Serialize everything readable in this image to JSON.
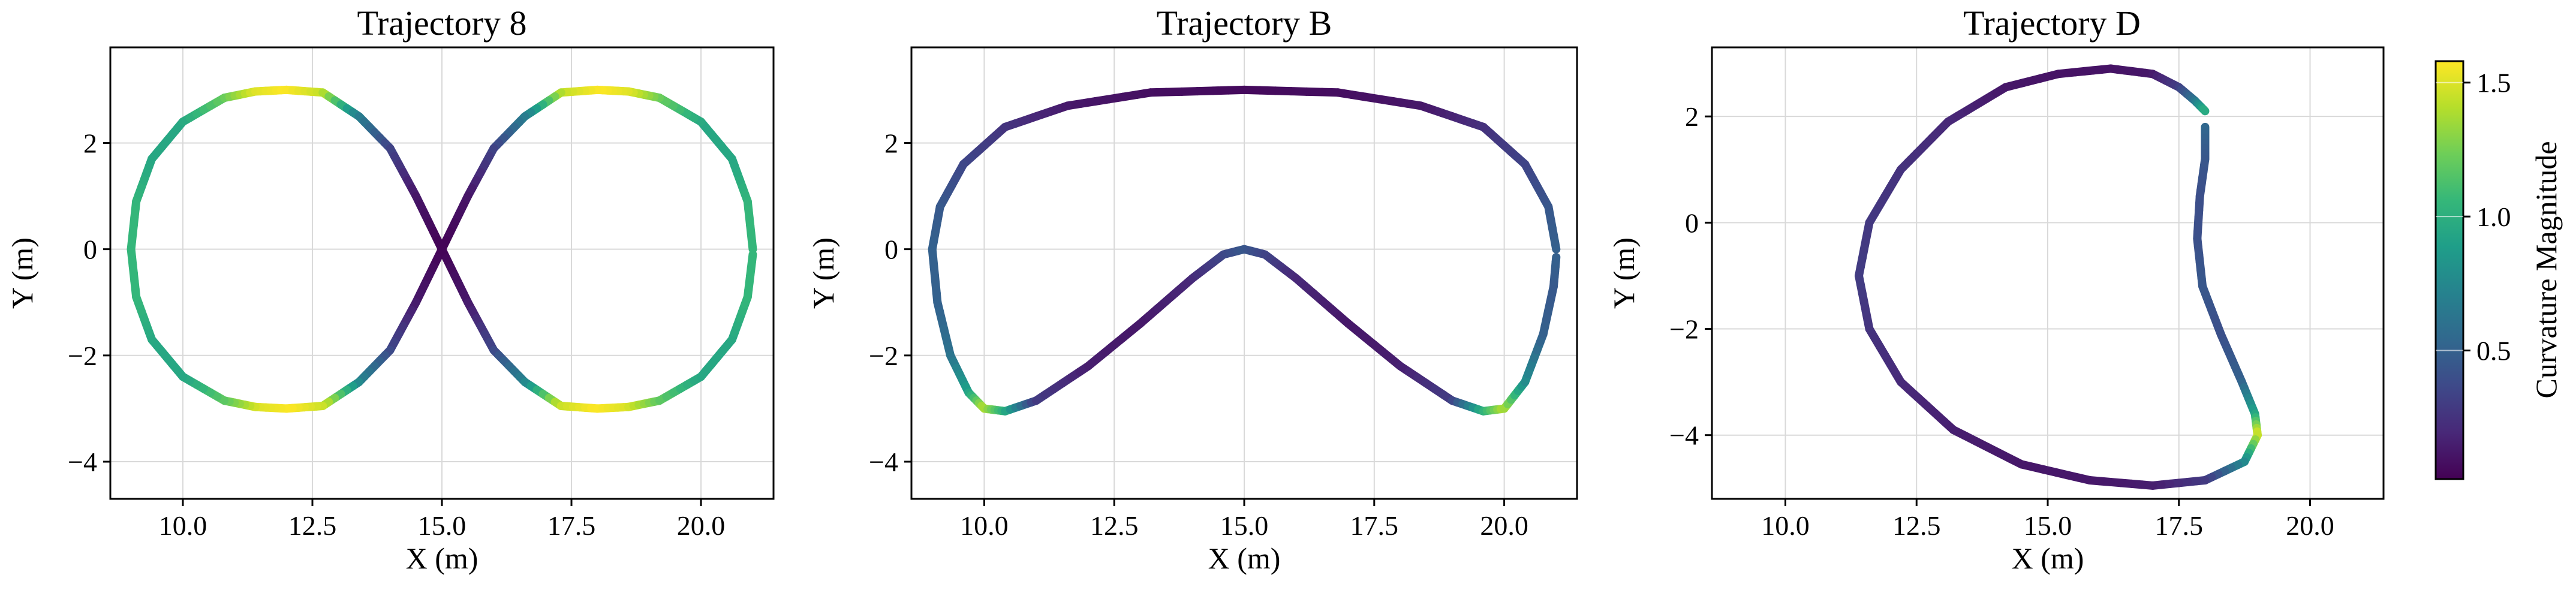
{
  "colors": {
    "viridis": [
      "#440154",
      "#482878",
      "#3e4989",
      "#31688e",
      "#26828e",
      "#1f9e89",
      "#35b779",
      "#6ece58",
      "#b5de2b",
      "#fde725"
    ],
    "grid": "#d9d9d9",
    "axis": "#000000"
  },
  "colorbar": {
    "label": "Curvature Magnitude",
    "ticks": [
      0.5,
      1.0,
      1.5
    ],
    "tick_labels": [
      "0.5",
      "1.0",
      "1.5"
    ],
    "range": [
      0.02,
      1.58
    ]
  },
  "chart_data": [
    {
      "type": "line",
      "title": "Trajectory 8",
      "xlabel": "X (m)",
      "ylabel": "Y (m)",
      "xlim": [
        8.6,
        21.4
      ],
      "ylim": [
        -4.7,
        3.8
      ],
      "xticks": [
        10.0,
        12.5,
        15.0,
        17.5,
        20.0
      ],
      "xtick_labels": [
        "10.0",
        "12.5",
        "15.0",
        "17.5",
        "20.0"
      ],
      "yticks": [
        -4,
        -2,
        0,
        2
      ],
      "ytick_labels": [
        "−4",
        "−2",
        "0",
        "2"
      ],
      "grid": true,
      "color_by": "Curvature Magnitude",
      "points": [
        [
          21.0,
          0.0,
          1.05
        ],
        [
          20.9,
          0.9,
          1.05
        ],
        [
          20.6,
          1.7,
          0.95
        ],
        [
          20.0,
          2.4,
          0.95
        ],
        [
          19.2,
          2.85,
          1.2
        ],
        [
          18.6,
          2.97,
          1.5
        ],
        [
          18.0,
          3.0,
          1.58
        ],
        [
          17.3,
          2.95,
          1.45
        ],
        [
          16.6,
          2.5,
          0.7
        ],
        [
          16.0,
          1.9,
          0.35
        ],
        [
          15.5,
          1.0,
          0.12
        ],
        [
          15.0,
          0.0,
          0.03
        ],
        [
          14.5,
          -1.0,
          0.12
        ],
        [
          14.0,
          -1.9,
          0.35
        ],
        [
          13.4,
          -2.5,
          0.7
        ],
        [
          12.7,
          -2.95,
          1.45
        ],
        [
          12.0,
          -3.0,
          1.58
        ],
        [
          11.4,
          -2.97,
          1.5
        ],
        [
          10.8,
          -2.85,
          1.2
        ],
        [
          10.0,
          -2.4,
          0.95
        ],
        [
          9.4,
          -1.7,
          0.95
        ],
        [
          9.1,
          -0.9,
          1.05
        ],
        [
          9.0,
          0.0,
          1.05
        ],
        [
          9.1,
          0.9,
          1.05
        ],
        [
          9.4,
          1.7,
          0.95
        ],
        [
          10.0,
          2.4,
          0.95
        ],
        [
          10.8,
          2.85,
          1.2
        ],
        [
          11.4,
          2.97,
          1.5
        ],
        [
          12.0,
          3.0,
          1.58
        ],
        [
          12.7,
          2.95,
          1.45
        ],
        [
          13.4,
          2.5,
          0.7
        ],
        [
          14.0,
          1.9,
          0.35
        ],
        [
          14.5,
          1.0,
          0.12
        ],
        [
          15.0,
          0.0,
          0.03
        ],
        [
          15.5,
          -1.0,
          0.12
        ],
        [
          16.0,
          -1.9,
          0.35
        ],
        [
          16.6,
          -2.5,
          0.7
        ],
        [
          17.3,
          -2.95,
          1.45
        ],
        [
          18.0,
          -3.0,
          1.58
        ],
        [
          18.6,
          -2.97,
          1.5
        ],
        [
          19.2,
          -2.85,
          1.2
        ],
        [
          20.0,
          -2.4,
          0.95
        ],
        [
          20.6,
          -1.7,
          0.95
        ],
        [
          20.9,
          -0.9,
          1.05
        ],
        [
          21.0,
          -0.1,
          1.05
        ]
      ]
    },
    {
      "type": "line",
      "title": "Trajectory B",
      "xlabel": "X (m)",
      "ylabel": "Y (m)",
      "xlim": [
        8.6,
        21.4
      ],
      "ylim": [
        -4.7,
        3.8
      ],
      "xticks": [
        10.0,
        12.5,
        15.0,
        17.5,
        20.0
      ],
      "xtick_labels": [
        "10.0",
        "12.5",
        "15.0",
        "17.5",
        "20.0"
      ],
      "yticks": [
        -4,
        -2,
        0,
        2
      ],
      "ytick_labels": [
        "−4",
        "−2",
        "0",
        "2"
      ],
      "grid": true,
      "color_by": "Curvature Magnitude",
      "points": [
        [
          21.0,
          0.0,
          0.5
        ],
        [
          20.85,
          0.8,
          0.45
        ],
        [
          20.4,
          1.6,
          0.35
        ],
        [
          19.6,
          2.3,
          0.25
        ],
        [
          18.4,
          2.7,
          0.12
        ],
        [
          16.8,
          2.95,
          0.08
        ],
        [
          15.0,
          3.0,
          0.06
        ],
        [
          13.2,
          2.95,
          0.08
        ],
        [
          11.6,
          2.7,
          0.12
        ],
        [
          10.4,
          2.3,
          0.25
        ],
        [
          9.6,
          1.6,
          0.35
        ],
        [
          9.15,
          0.8,
          0.45
        ],
        [
          9.0,
          0.0,
          0.5
        ],
        [
          9.1,
          -1.0,
          0.5
        ],
        [
          9.35,
          -2.0,
          0.6
        ],
        [
          9.7,
          -2.7,
          0.9
        ],
        [
          10.0,
          -3.0,
          1.4
        ],
        [
          10.4,
          -3.05,
          1.0
        ],
        [
          11.0,
          -2.85,
          0.3
        ],
        [
          12.0,
          -2.2,
          0.15
        ],
        [
          13.0,
          -1.4,
          0.12
        ],
        [
          14.0,
          -0.55,
          0.2
        ],
        [
          14.6,
          -0.1,
          0.35
        ],
        [
          15.0,
          0.0,
          0.45
        ],
        [
          15.4,
          -0.1,
          0.35
        ],
        [
          16.0,
          -0.55,
          0.2
        ],
        [
          17.0,
          -1.4,
          0.12
        ],
        [
          18.0,
          -2.2,
          0.15
        ],
        [
          19.0,
          -2.85,
          0.3
        ],
        [
          19.6,
          -3.05,
          1.0
        ],
        [
          20.0,
          -3.0,
          1.4
        ],
        [
          20.4,
          -2.5,
          0.8
        ],
        [
          20.75,
          -1.6,
          0.5
        ],
        [
          20.95,
          -0.7,
          0.45
        ],
        [
          21.0,
          -0.15,
          0.5
        ]
      ]
    },
    {
      "type": "line",
      "title": "Trajectory D",
      "xlabel": "X (m)",
      "ylabel": "Y (m)",
      "xlim": [
        8.6,
        21.4
      ],
      "ylim": [
        -5.2,
        3.3
      ],
      "xticks": [
        10.0,
        12.5,
        15.0,
        17.5,
        20.0
      ],
      "xtick_labels": [
        "10.0",
        "12.5",
        "15.0",
        "17.5",
        "20.0"
      ],
      "yticks": [
        -4,
        -2,
        0,
        2
      ],
      "ytick_labels": [
        "−4",
        "−2",
        "0",
        "2"
      ],
      "grid": true,
      "color_by": "Curvature Magnitude",
      "points": [
        [
          18.0,
          1.8,
          0.55
        ],
        [
          18.0,
          1.2,
          0.45
        ],
        [
          17.9,
          0.5,
          0.4
        ],
        [
          17.85,
          -0.3,
          0.4
        ],
        [
          17.95,
          -1.2,
          0.45
        ],
        [
          18.3,
          -2.1,
          0.4
        ],
        [
          18.7,
          -3.0,
          0.5
        ],
        [
          18.95,
          -3.6,
          0.9
        ],
        [
          19.0,
          -4.0,
          1.5
        ],
        [
          18.75,
          -4.5,
          0.8
        ],
        [
          18.0,
          -4.85,
          0.3
        ],
        [
          17.0,
          -4.95,
          0.15
        ],
        [
          15.8,
          -4.85,
          0.12
        ],
        [
          14.5,
          -4.55,
          0.12
        ],
        [
          13.2,
          -3.9,
          0.15
        ],
        [
          12.2,
          -3.0,
          0.2
        ],
        [
          11.6,
          -2.0,
          0.25
        ],
        [
          11.4,
          -1.0,
          0.3
        ],
        [
          11.6,
          0.0,
          0.28
        ],
        [
          12.2,
          1.0,
          0.25
        ],
        [
          13.1,
          1.9,
          0.2
        ],
        [
          14.2,
          2.55,
          0.12
        ],
        [
          15.2,
          2.8,
          0.1
        ],
        [
          16.2,
          2.9,
          0.1
        ],
        [
          17.0,
          2.8,
          0.12
        ],
        [
          17.5,
          2.55,
          0.3
        ],
        [
          17.8,
          2.3,
          0.6
        ],
        [
          18.0,
          2.1,
          1.0
        ]
      ]
    }
  ]
}
